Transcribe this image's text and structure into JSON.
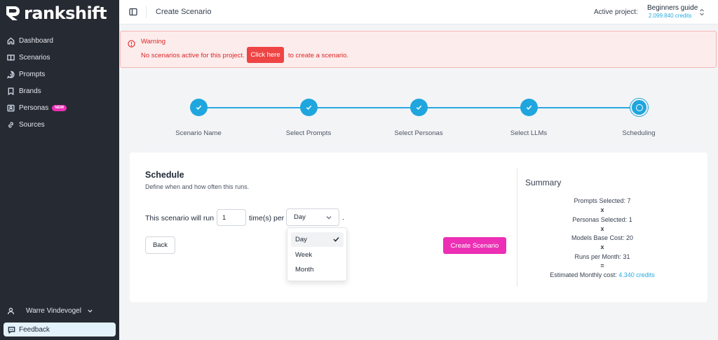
{
  "brand": {
    "name": "rankshift"
  },
  "sidebar": {
    "items": [
      {
        "label": "Dashboard",
        "icon": "home-icon"
      },
      {
        "label": "Scenarios",
        "icon": "book-icon"
      },
      {
        "label": "Prompts",
        "icon": "chat-icon"
      },
      {
        "label": "Brands",
        "icon": "bookmark-icon"
      },
      {
        "label": "Personas",
        "icon": "contact-icon",
        "badge": "NEW"
      },
      {
        "label": "Sources",
        "icon": "link-icon"
      }
    ],
    "user_name": "Warre Vindevogel",
    "feedback_label": "Feedback"
  },
  "header": {
    "title": "Create Scenario",
    "active_project_label": "Active project:",
    "project_name": "Beginners guide",
    "project_credits": "2.099.840 credits"
  },
  "warning": {
    "title": "Warning",
    "text_before": "No scenarios active for this project.",
    "button_label": "Click here",
    "text_after": "to create a scenario."
  },
  "steps": [
    {
      "label": "Scenario Name",
      "state": "done"
    },
    {
      "label": "Select Prompts",
      "state": "done"
    },
    {
      "label": "Select Personas",
      "state": "done"
    },
    {
      "label": "Select LLMs",
      "state": "done"
    },
    {
      "label": "Scheduling",
      "state": "current"
    }
  ],
  "schedule": {
    "title": "Schedule",
    "subtitle": "Define when and how often this runs.",
    "run_prefix": "This scenario will run",
    "times_value": "1",
    "run_middle": "time(s) per",
    "frequency_value": "Day",
    "run_suffix": ".",
    "back_label": "Back",
    "create_label": "Create Scenario",
    "frequency_options": [
      "Day",
      "Week",
      "Month"
    ]
  },
  "summary": {
    "title": "Summary",
    "prompts": "Prompts Selected: 7",
    "personas": "Personas Selected: 1",
    "models": "Models Base Cost: 20",
    "runs": "Runs per Month: 31",
    "times_symbol": "x",
    "equals_symbol": "=",
    "estimated_label": "Estimated Monthly cost:",
    "estimated_value": "4.340 credits"
  },
  "colors": {
    "accent_blue": "#1fa6de",
    "accent_pink": "#ec2fb4",
    "warning_red": "#ef4444",
    "sidebar_bg": "#262a33"
  }
}
